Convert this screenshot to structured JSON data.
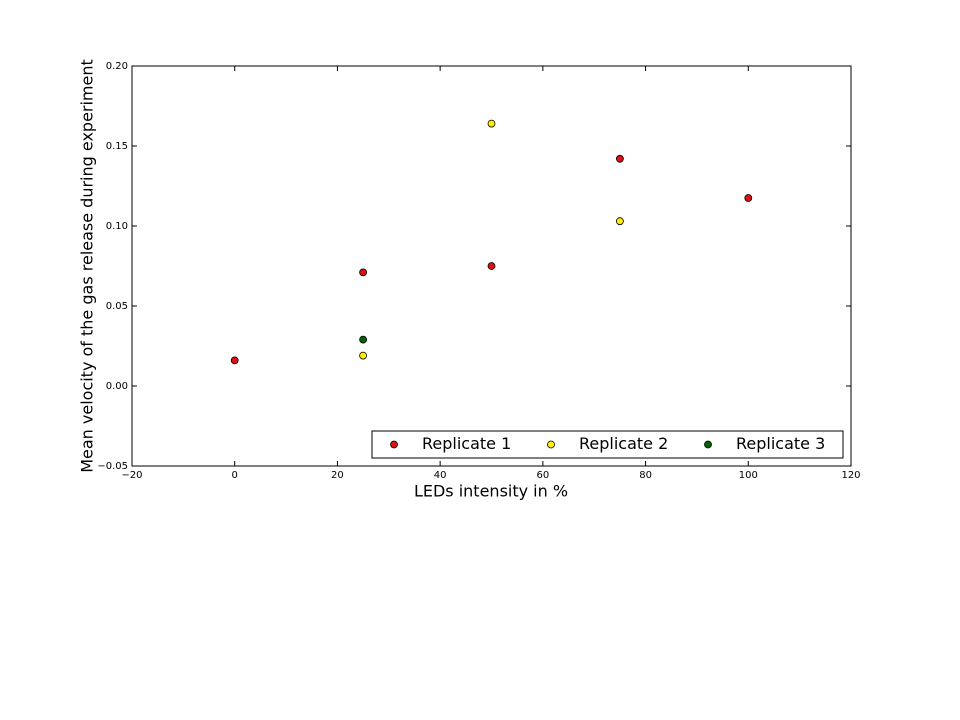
{
  "chart_data": {
    "type": "scatter",
    "x_label": "LEDs intensity in %",
    "y_label": "Mean velocity of the gas release during  experiment",
    "xlim": [
      -20,
      120
    ],
    "ylim": [
      -0.05,
      0.2
    ],
    "xticks": [
      {
        "value": -20,
        "label": "−20"
      },
      0,
      20,
      40,
      60,
      80,
      100,
      120
    ],
    "yticks": [
      {
        "value": -0.05,
        "label": "−0.05"
      },
      {
        "value": 0,
        "label": "0.00"
      },
      0.05,
      {
        "value": 0.1,
        "label": "0.10"
      },
      0.15,
      {
        "value": 0.2,
        "label": "0.20"
      }
    ],
    "legend": "lower right",
    "series": [
      {
        "name": "Replicate 1",
        "color": "#dd1111",
        "x": [
          0,
          25,
          50,
          75,
          100
        ],
        "values": [
          0.016,
          0.071,
          0.075,
          0.142,
          0.1175
        ]
      },
      {
        "name": "Replicate 2",
        "color": "#ffee00",
        "x": [
          25,
          50,
          75
        ],
        "values": [
          0.019,
          0.164,
          0.103
        ]
      },
      {
        "name": "Replicate 3",
        "color": "#006400",
        "x": [
          25
        ],
        "values": [
          0.029
        ]
      }
    ]
  }
}
